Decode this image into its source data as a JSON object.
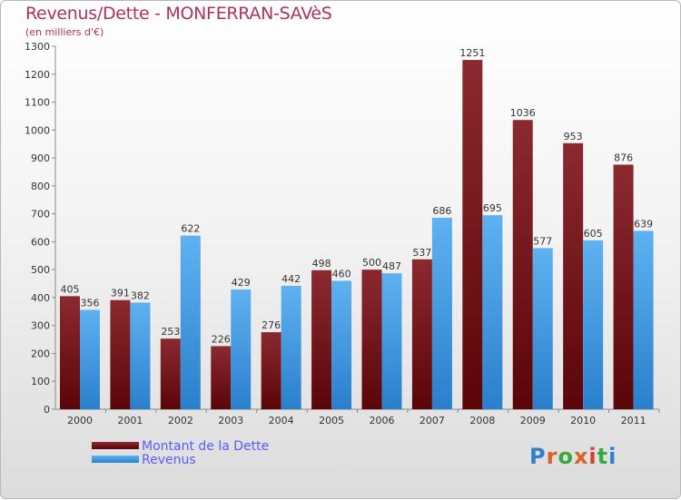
{
  "title": "Revenus/Dette - MONFERRAN-SAVèS",
  "subtitle": "(en milliers d'€)",
  "logo_text": "Proxiti",
  "colors": {
    "dette": "#6b0f14",
    "revenus": "#3a95e0",
    "title": "#b03060",
    "legend_text": "#5a5aff"
  },
  "legend": [
    {
      "label": "Montant de la Dette",
      "color": "#6b0f14"
    },
    {
      "label": "Revenus",
      "color": "#3a95e0"
    }
  ],
  "chart_data": {
    "type": "bar",
    "title": "Revenus/Dette - MONFERRAN-SAVèS",
    "subtitle": "(en milliers d'€)",
    "categories": [
      "2000",
      "2001",
      "2002",
      "2003",
      "2004",
      "2005",
      "2006",
      "2007",
      "2008",
      "2009",
      "2010",
      "2011"
    ],
    "series": [
      {
        "name": "Montant de la Dette",
        "values": [
          405,
          391,
          253,
          226,
          276,
          498,
          500,
          537,
          1251,
          1036,
          953,
          876
        ]
      },
      {
        "name": "Revenus",
        "values": [
          356,
          382,
          622,
          429,
          442,
          460,
          487,
          686,
          695,
          577,
          605,
          639
        ]
      }
    ],
    "ylim": [
      0,
      1300
    ],
    "yticks": [
      0,
      100,
      200,
      300,
      400,
      500,
      600,
      700,
      800,
      900,
      1000,
      1100,
      1200,
      1300
    ],
    "grid": false,
    "legend_position": "bottom-left"
  }
}
